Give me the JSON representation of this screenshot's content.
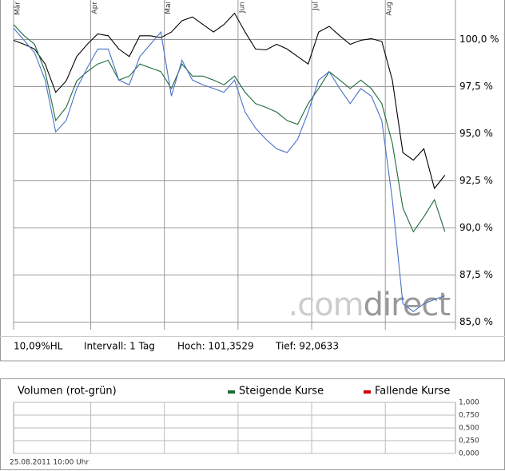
{
  "chart_data": [
    {
      "type": "line",
      "x": [
        0,
        3,
        6,
        9,
        12,
        15,
        18,
        21,
        24,
        27,
        30,
        33,
        36,
        39,
        42,
        45,
        48,
        51,
        54,
        57,
        60,
        63,
        66,
        69,
        72,
        75,
        78,
        81,
        84,
        87,
        90,
        93,
        96,
        99,
        102,
        105,
        108,
        111,
        114,
        117,
        120,
        123
      ],
      "series": [
        {
          "color": "#000000",
          "values": [
            99.96,
            99.75,
            99.5,
            98.7,
            97.2,
            97.8,
            99.1,
            99.75,
            100.3,
            100.2,
            99.5,
            99.1,
            100.2,
            100.2,
            100.1,
            100.4,
            101.0,
            101.2,
            100.8,
            100.4,
            100.8,
            101.4,
            100.4,
            99.5,
            99.45,
            99.75,
            99.5,
            99.1,
            98.7,
            100.4,
            100.7,
            100.2,
            99.75,
            99.96,
            100.05,
            99.9,
            97.85,
            94.0,
            93.6,
            94.2,
            92.1,
            92.8
          ]
        },
        {
          "color": "#1f6b3a",
          "values": [
            100.8,
            100.2,
            99.75,
            98.3,
            95.7,
            96.4,
            97.8,
            98.3,
            98.7,
            98.9,
            97.85,
            98.06,
            98.7,
            98.5,
            98.3,
            97.4,
            98.7,
            98.06,
            98.06,
            97.85,
            97.6,
            98.06,
            97.2,
            96.6,
            96.4,
            96.15,
            95.7,
            95.5,
            96.6,
            97.4,
            98.3,
            97.85,
            97.4,
            97.85,
            97.4,
            96.6,
            94.5,
            91.06,
            89.8,
            90.6,
            91.5,
            89.8
          ]
        },
        {
          "color": "#4a72c8",
          "values": [
            100.6,
            99.96,
            99.3,
            97.85,
            95.1,
            95.7,
            97.4,
            98.5,
            99.5,
            99.5,
            97.85,
            97.6,
            99.1,
            99.75,
            100.4,
            97.0,
            98.9,
            97.85,
            97.6,
            97.4,
            97.2,
            97.85,
            96.15,
            95.3,
            94.7,
            94.2,
            94.0,
            94.7,
            96.15,
            97.85,
            98.3,
            97.4,
            96.6,
            97.4,
            97.0,
            95.7,
            91.5,
            85.98,
            85.56,
            85.98,
            86.2,
            86.4
          ]
        }
      ],
      "xlim": [
        0,
        126
      ],
      "xticks": [
        {
          "value": 0,
          "label": "Mär"
        },
        {
          "value": 22,
          "label": "Apr"
        },
        {
          "value": 43,
          "label": "Mai"
        },
        {
          "value": 64,
          "label": "Jun"
        },
        {
          "value": 85,
          "label": "Jul"
        },
        {
          "value": 106,
          "label": "Aug"
        }
      ],
      "ylim": [
        84.6,
        102.1
      ],
      "yticks": [
        {
          "value": 85,
          "label": "85,0 %"
        },
        {
          "value": 87.5,
          "label": "87,5 %"
        },
        {
          "value": 90,
          "label": "90,0 %"
        },
        {
          "value": 92.5,
          "label": "92,5 %"
        },
        {
          "value": 95,
          "label": "95,0 %"
        },
        {
          "value": 97.5,
          "label": "97,5 %"
        },
        {
          "value": 100,
          "label": "100,0 %"
        }
      ],
      "grid": true,
      "watermark": [
        ".com",
        "direct"
      ],
      "info": [
        "10,09%HL",
        "Intervall: 1 Tag",
        "Hoch: 101,3529",
        "Tief: 92,0633"
      ]
    },
    {
      "type": "bar",
      "title": "Volumen (rot-grün)",
      "series": [
        {
          "name": "Steigende Kurse",
          "color": "#1f6b3a"
        },
        {
          "name": "Fallende Kurse",
          "color": "#cc0000"
        }
      ],
      "ylim": [
        0,
        1
      ],
      "yticks": [
        {
          "value": 0,
          "label": "0,000"
        },
        {
          "value": 0.25,
          "label": "0,250"
        },
        {
          "value": 0.5,
          "label": "0,500"
        },
        {
          "value": 0.75,
          "label": "0,750"
        },
        {
          "value": 1,
          "label": "1,000"
        }
      ],
      "grid": true,
      "footer": "25.08.2011 10:00 Uhr"
    }
  ]
}
